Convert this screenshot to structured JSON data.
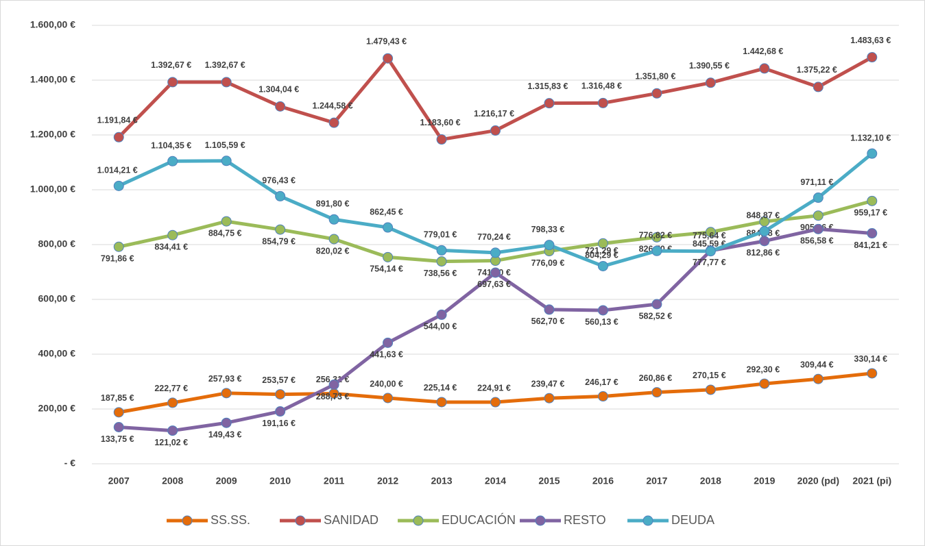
{
  "chart_data": {
    "type": "line",
    "categories": [
      "2007",
      "2008",
      "2009",
      "2010",
      "2011",
      "2012",
      "2013",
      "2014",
      "2015",
      "2016",
      "2017",
      "2018",
      "2019",
      "2020 (pd)",
      "2021 (pi)"
    ],
    "ylim": [
      0,
      1600
    ],
    "yticks": [
      {
        "value": 0,
        "label": "- €"
      },
      {
        "value": 200,
        "label": "200,00 €"
      },
      {
        "value": 400,
        "label": "400,00 €"
      },
      {
        "value": 600,
        "label": "600,00 €"
      },
      {
        "value": 800,
        "label": "800,00 €"
      },
      {
        "value": 1000,
        "label": "1.000,00 €"
      },
      {
        "value": 1200,
        "label": "1.200,00 €"
      },
      {
        "value": 1400,
        "label": "1.400,00 €"
      },
      {
        "value": 1600,
        "label": "1.600,00 €"
      }
    ],
    "grid": true,
    "legend": "bottom",
    "series": [
      {
        "name": "SS.SS.",
        "color": "#e46c0a",
        "values": [
          187.85,
          222.77,
          257.93,
          253.57,
          256.31,
          240.0,
          225.14,
          224.91,
          239.47,
          246.17,
          260.86,
          270.15,
          292.3,
          309.44,
          330.14
        ],
        "value_labels": [
          "187,85 €",
          "222,77 €",
          "257,93 €",
          "253,57 €",
          "256,31 €",
          "240,00 €",
          "225,14 €",
          "224,91 €",
          "239,47 €",
          "246,17 €",
          "260,86 €",
          "270,15 €",
          "292,30 €",
          "309,44 €",
          "330,14 €"
        ]
      },
      {
        "name": "SANIDAD",
        "color": "#c0504d",
        "values": [
          1191.84,
          1392.67,
          1392.67,
          1304.04,
          1244.58,
          1479.43,
          1183.6,
          1216.17,
          1315.83,
          1316.48,
          1351.8,
          1390.55,
          1442.68,
          1375.22,
          1483.63
        ],
        "value_labels": [
          "1.191,84 €",
          "1.392,67 €",
          "1.392,67 €",
          "1.304,04 €",
          "1.244,58 €",
          "1.479,43 €",
          "1.183,60 €",
          "1.216,17 €",
          "1.315,83 €",
          "1.316,48 €",
          "1.351,80 €",
          "1.390,55 €",
          "1.442,68 €",
          "1.375,22 €",
          "1.483,63 €"
        ]
      },
      {
        "name": "EDUCACIÓN",
        "color": "#9bbb59",
        "values": [
          791.86,
          834.41,
          884.75,
          854.79,
          820.02,
          754.14,
          738.56,
          741.1,
          776.09,
          804.29,
          826.7,
          845.59,
          884.08,
          905.66,
          959.17
        ],
        "value_labels": [
          "791,86 €",
          "834,41 €",
          "884,75 €",
          "854,79 €",
          "820,02 €",
          "754,14 €",
          "738,56 €",
          "741,10 €",
          "776,09 €",
          "804,29 €",
          "826,70 €",
          "845,59 €",
          "884,08 €",
          "905,66 €",
          "959,17 €"
        ]
      },
      {
        "name": "RESTO",
        "color": "#8064a2",
        "values": [
          133.75,
          121.02,
          149.43,
          191.16,
          288.73,
          441.63,
          544.0,
          697.63,
          562.7,
          560.13,
          582.52,
          777.77,
          812.86,
          856.58,
          841.21
        ],
        "value_labels": [
          "133,75 €",
          "121,02 €",
          "149,43 €",
          "191,16 €",
          "288,73 €",
          "441,63 €",
          "544,00 €",
          "697,63 €",
          "562,70 €",
          "560,13 €",
          "582,52 €",
          "777,77 €",
          "812,86 €",
          "856,58 €",
          "841,21 €"
        ]
      },
      {
        "name": "DEUDA",
        "color": "#4bacc6",
        "values": [
          1014.21,
          1104.35,
          1105.59,
          976.43,
          891.8,
          862.45,
          779.01,
          770.24,
          798.33,
          721.29,
          776.82,
          775.64,
          848.87,
          971.11,
          1132.1
        ],
        "value_labels": [
          "1.014,21 €",
          "1.104,35 €",
          "1.105,59 €",
          "976,43 €",
          "891,80 €",
          "862,45 €",
          "779,01 €",
          "770,24 €",
          "798,33 €",
          "721,29 €",
          "776,82 €",
          "775,64 €",
          "848,87 €",
          "971,11 €",
          "1.132,10 €"
        ]
      }
    ]
  }
}
